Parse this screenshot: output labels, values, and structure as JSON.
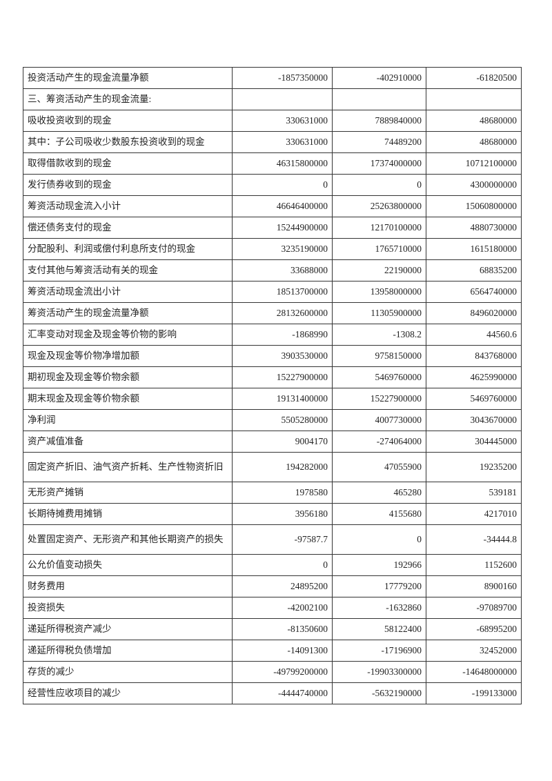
{
  "rows": [
    {
      "label": "投资活动产生的现金流量净额",
      "values": [
        "-1857350000",
        "-402910000",
        "-61820500"
      ]
    },
    {
      "label": "三、筹资活动产生的现金流量:",
      "values": [
        "",
        "",
        ""
      ]
    },
    {
      "label": "吸收投资收到的现金",
      "values": [
        "330631000",
        "7889840000",
        "48680000"
      ]
    },
    {
      "label": "其中：子公司吸收少数股东投资收到的现金",
      "values": [
        "330631000",
        "74489200",
        "48680000"
      ]
    },
    {
      "label": "取得借款收到的现金",
      "values": [
        "46315800000",
        "17374000000",
        "10712100000"
      ]
    },
    {
      "label": "发行债券收到的现金",
      "values": [
        "0",
        "0",
        "4300000000"
      ]
    },
    {
      "label": "筹资活动现金流入小计",
      "values": [
        "46646400000",
        "25263800000",
        "15060800000"
      ]
    },
    {
      "label": "偿还债务支付的现金",
      "values": [
        "15244900000",
        "12170100000",
        "4880730000"
      ]
    },
    {
      "label": "分配股利、利润或偿付利息所支付的现金",
      "values": [
        "3235190000",
        "1765710000",
        "1615180000"
      ]
    },
    {
      "label": "支付其他与筹资活动有关的现金",
      "values": [
        "33688000",
        "22190000",
        "68835200"
      ]
    },
    {
      "label": "筹资活动现金流出小计",
      "values": [
        "18513700000",
        "13958000000",
        "6564740000"
      ]
    },
    {
      "label": "筹资活动产生的现金流量净额",
      "values": [
        "28132600000",
        "11305900000",
        "8496020000"
      ]
    },
    {
      "label": "汇率变动对现金及现金等价物的影响",
      "values": [
        "-1868990",
        "-1308.2",
        "44560.6"
      ]
    },
    {
      "label": "现金及现金等价物净增加额",
      "values": [
        "3903530000",
        "9758150000",
        "843768000"
      ]
    },
    {
      "label": "期初现金及现金等价物余额",
      "values": [
        "15227900000",
        "5469760000",
        "4625990000"
      ]
    },
    {
      "label": "期末现金及现金等价物余额",
      "values": [
        "19131400000",
        "15227900000",
        "5469760000"
      ]
    },
    {
      "label": "净利润",
      "values": [
        "5505280000",
        "4007730000",
        "3043670000"
      ]
    },
    {
      "label": "资产减值准备",
      "values": [
        "9004170",
        "-274064000",
        "304445000"
      ]
    },
    {
      "label": "固定资产折旧、油气资产折耗、生产性物资折旧",
      "values": [
        "194282000",
        "47055900",
        "19235200"
      ],
      "tall": true
    },
    {
      "label": "无形资产摊销",
      "values": [
        "1978580",
        "465280",
        "539181"
      ]
    },
    {
      "label": "长期待摊费用摊销",
      "values": [
        "3956180",
        "4155680",
        "4217010"
      ]
    },
    {
      "label": "处置固定资产、无形资产和其他长期资产的损失",
      "values": [
        "-97587.7",
        "0",
        "-34444.8"
      ],
      "tall": true
    },
    {
      "label": "公允价值变动损失",
      "values": [
        "0",
        "192966",
        "1152600"
      ]
    },
    {
      "label": "财务费用",
      "values": [
        "24895200",
        "17779200",
        "8900160"
      ]
    },
    {
      "label": "投资损失",
      "values": [
        "-42002100",
        "-1632860",
        "-97089700"
      ]
    },
    {
      "label": "递延所得税资产减少",
      "values": [
        "-81350600",
        "58122400",
        "-68995200"
      ]
    },
    {
      "label": "递延所得税负债增加",
      "values": [
        "-14091300",
        "-17196900",
        "32452000"
      ]
    },
    {
      "label": "存货的减少",
      "values": [
        "-49799200000",
        "-19903300000",
        "-14648000000"
      ]
    },
    {
      "label": "经营性应收项目的减少",
      "values": [
        "-4444740000",
        "-5632190000",
        "-199133000"
      ]
    }
  ]
}
